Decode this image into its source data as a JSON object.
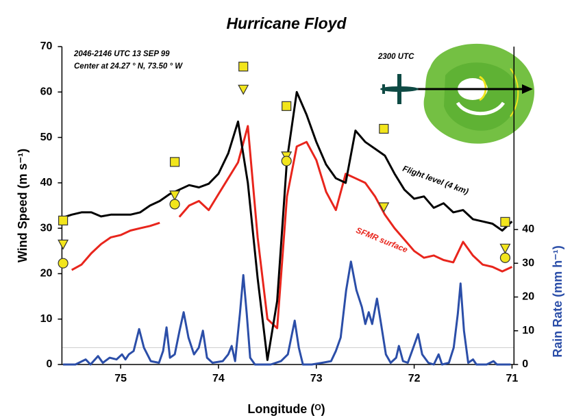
{
  "chart_data": {
    "type": "line",
    "title": "Hurricane Floyd",
    "annotations": [
      "2046-2146 UTC 13 SEP 99",
      "Center at 24.27 ° N, 73.50 ° W",
      "2300 UTC"
    ],
    "xlabel": "Longitude (ᴼ)",
    "ylabel": "Wind Speed (m s⁻¹)",
    "y2label": "Rain Rate (mm h⁻¹)",
    "xlim": [
      75.6,
      70.98
    ],
    "xticks": [
      75,
      74,
      73,
      72,
      71
    ],
    "ylim": [
      0,
      70
    ],
    "yticks": [
      0,
      10,
      20,
      30,
      40,
      50,
      60,
      70
    ],
    "y2lim": [
      0,
      94.2
    ],
    "y2ticks": [
      0,
      10,
      20,
      30,
      40
    ],
    "y2_color": "#2b4ea8",
    "reference_line": {
      "axis": "y2",
      "value": 5,
      "color": "#cccccc"
    },
    "x": [
      75.6,
      75.5,
      75.4,
      75.3,
      75.2,
      75.1,
      75.0,
      74.9,
      74.8,
      74.7,
      74.6,
      74.5,
      74.4,
      74.3,
      74.2,
      74.1,
      74.0,
      73.9,
      73.8,
      73.7,
      73.6,
      73.5,
      73.4,
      73.3,
      73.2,
      73.1,
      73.0,
      72.9,
      72.8,
      72.7,
      72.6,
      72.5,
      72.4,
      72.3,
      72.2,
      72.1,
      72.0,
      71.9,
      71.8,
      71.7,
      71.6,
      71.5,
      71.4,
      71.3,
      71.2,
      71.1,
      71.0
    ],
    "series": [
      {
        "name": "Flight level (4 km)",
        "color": "#000000",
        "values": [
          32.3,
          33,
          33.5,
          33.5,
          32.6,
          33,
          33,
          33,
          33.5,
          35,
          36,
          37.5,
          38.5,
          39.5,
          39,
          39.8,
          42,
          46.5,
          53.5,
          40,
          19,
          1,
          14,
          45,
          60,
          55,
          49,
          44,
          41,
          40,
          51.5,
          49,
          47.5,
          46,
          42,
          38.5,
          36.5,
          37,
          34.5,
          35.5,
          33.5,
          34,
          32,
          31.5,
          31,
          29.5,
          31.5
        ]
      },
      {
        "name": "SFMR surface",
        "color": "#e8251c",
        "values": [
          null,
          20.8,
          22,
          24.5,
          26.5,
          28,
          28.5,
          29.5,
          30,
          30.5,
          31.2,
          null,
          32.5,
          35,
          36,
          34,
          37.5,
          41,
          44.5,
          52.5,
          28,
          10,
          8,
          37,
          48,
          49,
          45,
          38,
          34,
          42,
          41,
          40,
          37,
          33,
          30,
          27.5,
          25,
          23.5,
          24,
          23,
          22.5,
          27,
          24,
          22,
          21.5,
          20.5,
          21.5
        ]
      },
      {
        "color": "#2b4ea8",
        "axis": "y2",
        "x": [
          75.588,
          75.462,
          75.357,
          75.308,
          75.231,
          75.182,
          75.112,
          75.042,
          74.986,
          74.951,
          74.916,
          74.867,
          74.811,
          74.762,
          74.692,
          74.608,
          74.566,
          74.531,
          74.496,
          74.447,
          74.398,
          74.356,
          74.307,
          74.25,
          74.201,
          74.159,
          74.117,
          74.061,
          73.956,
          73.9,
          73.865,
          73.83,
          73.781,
          73.746,
          73.711,
          73.676,
          73.627,
          73.536,
          73.466,
          73.361,
          73.291,
          73.256,
          73.221,
          73.179,
          73.137,
          73.046,
          72.941,
          72.849,
          72.8,
          72.751,
          72.695,
          72.646,
          72.59,
          72.534,
          72.499,
          72.464,
          72.429,
          72.38,
          72.338,
          72.289,
          72.24,
          72.184,
          72.156,
          72.114,
          72.065,
          72.009,
          71.96,
          71.918,
          71.855,
          71.799,
          71.75,
          71.715,
          71.645,
          71.596,
          71.554,
          71.526,
          71.491,
          71.448,
          71.399,
          71.364,
          71.259,
          71.189,
          71.154,
          71.014
        ],
        "values": [
          0,
          0,
          1.5,
          0,
          2.5,
          0.5,
          2,
          1.5,
          3,
          1.5,
          3,
          4,
          10.5,
          5,
          1,
          0.5,
          4,
          11,
          2,
          3,
          10,
          15.5,
          8,
          3,
          5,
          10,
          2,
          0.5,
          1,
          3,
          5.5,
          1,
          15,
          26.5,
          15,
          2,
          0,
          0,
          0,
          1,
          3,
          8,
          13,
          5,
          0,
          0,
          0.5,
          1,
          4,
          8,
          22,
          30.5,
          22,
          17,
          12,
          15.5,
          12,
          19.5,
          12,
          3,
          0.5,
          2,
          5.5,
          1,
          0.5,
          5,
          9,
          3,
          0.5,
          0,
          3,
          0,
          0.5,
          5,
          15,
          24,
          10,
          0.5,
          1.5,
          0,
          0,
          1,
          0,
          0
        ]
      },
      {
        "marker": "square",
        "color": "#f2e51c",
        "x": [
          75.588,
          74.447,
          73.746,
          73.305,
          72.31,
          71.07
        ],
        "values": [
          31.7,
          44.6,
          65.6,
          56.9,
          51.9,
          31.4
        ]
      },
      {
        "marker": "triangle",
        "color": "#f2e51c",
        "x": [
          75.588,
          74.447,
          73.746,
          73.305,
          72.31,
          71.07
        ],
        "values": [
          26.5,
          37.3,
          60.6,
          45.9,
          34.7,
          25.6
        ]
      },
      {
        "marker": "circle",
        "color": "#f2e51c",
        "x": [
          75.588,
          74.447,
          73.305,
          71.07
        ],
        "values": [
          22.3,
          35.3,
          44.8,
          23.5
        ]
      }
    ]
  }
}
